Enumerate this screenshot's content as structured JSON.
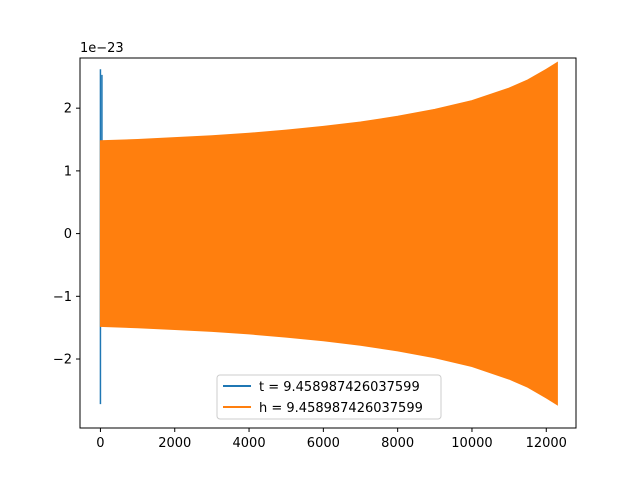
{
  "chart_data": {
    "type": "line",
    "title": "",
    "xlabel": "",
    "ylabel": "",
    "offset_label": "1e−23",
    "xlim": [
      -550,
      12800
    ],
    "ylim": [
      -3.1,
      2.8
    ],
    "x_ticks": [
      0,
      2000,
      4000,
      6000,
      8000,
      10000,
      12000
    ],
    "x_tick_labels": [
      "0",
      "2000",
      "4000",
      "6000",
      "8000",
      "10000",
      "12000"
    ],
    "y_ticks": [
      2,
      1,
      0,
      -1,
      -2
    ],
    "y_tick_labels": [
      "2",
      "1",
      "0",
      "−1",
      "−2"
    ],
    "grid": false,
    "legend_position": "lower center",
    "series": [
      {
        "name": "t = 9.458987426037599",
        "color": "#1f77b4",
        "x": [
          0,
          0,
          0,
          0,
          0,
          0,
          0,
          0,
          0
        ],
        "y": [
          -1.1,
          2.62,
          -2.72,
          2.5,
          -1.5,
          2.53,
          -1.5,
          1.5,
          -1.0
        ],
        "spikes": [
          {
            "x": 0,
            "ymin": -2.72,
            "ymax": 2.62
          },
          {
            "x": 40,
            "ymin": -1.4,
            "ymax": 2.53
          }
        ]
      },
      {
        "name": "h = 9.458987426037599",
        "color": "#ff7f0e",
        "envelope_x": [
          0,
          1000,
          2000,
          3000,
          4000,
          5000,
          6000,
          7000,
          8000,
          9000,
          10000,
          11000,
          11500,
          12000,
          12300
        ],
        "envelope_upper": [
          1.48,
          1.5,
          1.53,
          1.56,
          1.6,
          1.65,
          1.71,
          1.78,
          1.87,
          1.98,
          2.12,
          2.32,
          2.45,
          2.62,
          2.73
        ],
        "envelope_lower": [
          -1.48,
          -1.5,
          -1.53,
          -1.56,
          -1.6,
          -1.65,
          -1.71,
          -1.78,
          -1.87,
          -1.98,
          -2.12,
          -2.32,
          -2.45,
          -2.62,
          -2.73
        ]
      }
    ]
  }
}
